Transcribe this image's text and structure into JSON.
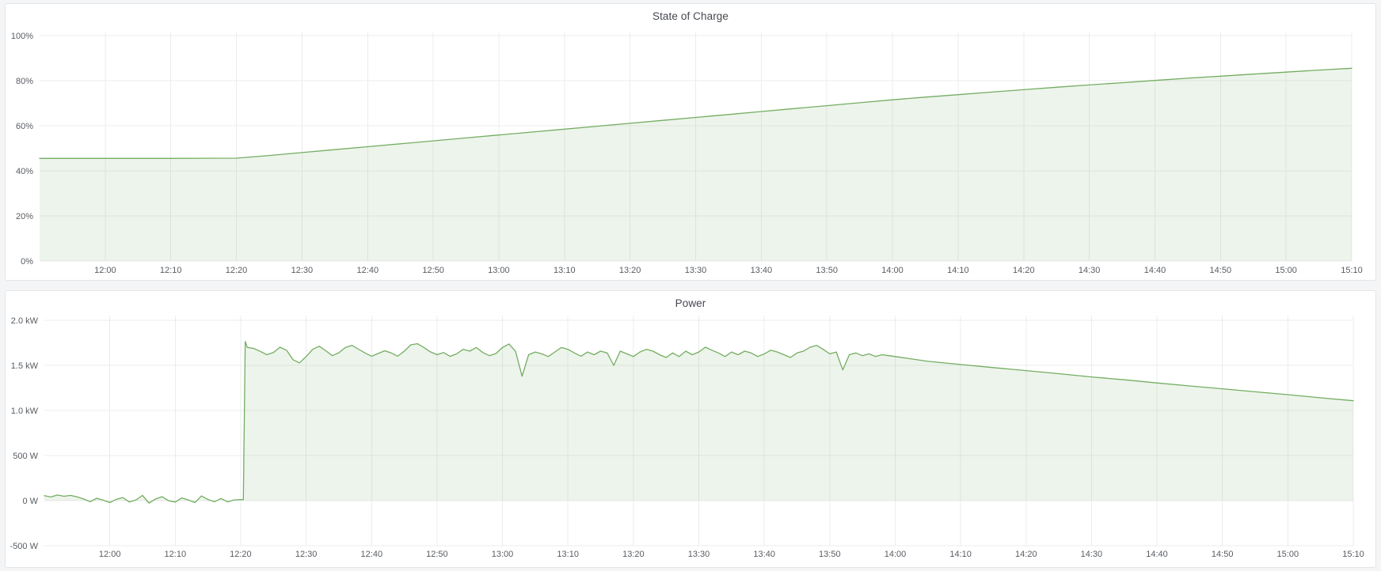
{
  "theme": {
    "page_bg": "#f4f5f6",
    "panel_bg": "#ffffff",
    "panel_border": "#e3e5e8",
    "title_color": "#44484e",
    "tick_color": "#585c62",
    "grid_color": "#ebecee",
    "series_green": "#74ad62",
    "series_green_fill": "rgba(116,173,98,0.13)"
  },
  "panels": [
    {
      "title": "State of Charge"
    },
    {
      "title": "Power"
    }
  ],
  "chart_data": [
    {
      "type": "area",
      "title": "State of Charge",
      "unit": "%",
      "x_start": "11:50",
      "x_end": "15:10",
      "ylim": [
        0,
        100
      ],
      "grid": true,
      "legend": false,
      "line_color": "#74ad62",
      "fill_color": "rgba(116,173,98,0.13)",
      "y_ticks": [
        {
          "v": 0,
          "label": "0%"
        },
        {
          "v": 20,
          "label": "20%"
        },
        {
          "v": 40,
          "label": "40%"
        },
        {
          "v": 60,
          "label": "60%"
        },
        {
          "v": 80,
          "label": "80%"
        },
        {
          "v": 100,
          "label": "100%"
        }
      ],
      "x_ticks": [
        {
          "t": 10,
          "label": "12:00"
        },
        {
          "t": 20,
          "label": "12:10"
        },
        {
          "t": 30,
          "label": "12:20"
        },
        {
          "t": 40,
          "label": "12:30"
        },
        {
          "t": 50,
          "label": "12:40"
        },
        {
          "t": 60,
          "label": "12:50"
        },
        {
          "t": 70,
          "label": "13:00"
        },
        {
          "t": 80,
          "label": "13:10"
        },
        {
          "t": 90,
          "label": "13:20"
        },
        {
          "t": 100,
          "label": "13:30"
        },
        {
          "t": 110,
          "label": "13:40"
        },
        {
          "t": 120,
          "label": "13:50"
        },
        {
          "t": 130,
          "label": "14:00"
        },
        {
          "t": 140,
          "label": "14:10"
        },
        {
          "t": 150,
          "label": "14:20"
        },
        {
          "t": 160,
          "label": "14:30"
        },
        {
          "t": 170,
          "label": "14:40"
        },
        {
          "t": 180,
          "label": "14:50"
        },
        {
          "t": 190,
          "label": "15:00"
        },
        {
          "t": 200,
          "label": "15:10"
        }
      ],
      "series": [
        {
          "name": "State of Charge",
          "points": [
            [
              0,
              45.5
            ],
            [
              10,
              45.5
            ],
            [
              20,
              45.5
            ],
            [
              30,
              45.6
            ],
            [
              35,
              46.8
            ],
            [
              40,
              48.1
            ],
            [
              45,
              49.4
            ],
            [
              50,
              50.7
            ],
            [
              55,
              52.0
            ],
            [
              60,
              53.3
            ],
            [
              65,
              54.6
            ],
            [
              70,
              55.9
            ],
            [
              75,
              57.2
            ],
            [
              80,
              58.5
            ],
            [
              85,
              59.8
            ],
            [
              90,
              61.1
            ],
            [
              95,
              62.4
            ],
            [
              100,
              63.7
            ],
            [
              105,
              65.0
            ],
            [
              110,
              66.3
            ],
            [
              115,
              67.6
            ],
            [
              120,
              68.9
            ],
            [
              125,
              70.2
            ],
            [
              130,
              71.5
            ],
            [
              135,
              72.7
            ],
            [
              140,
              73.8
            ],
            [
              145,
              74.9
            ],
            [
              150,
              76.0
            ],
            [
              155,
              77.1
            ],
            [
              160,
              78.1
            ],
            [
              165,
              79.1
            ],
            [
              170,
              80.1
            ],
            [
              175,
              81.1
            ],
            [
              180,
              82.0
            ],
            [
              185,
              82.9
            ],
            [
              190,
              83.8
            ],
            [
              195,
              84.7
            ],
            [
              200,
              85.5
            ]
          ]
        }
      ]
    },
    {
      "type": "area",
      "title": "Power",
      "unit": "W",
      "x_start": "11:50",
      "x_end": "15:10",
      "ylim": [
        -500,
        2000
      ],
      "grid": true,
      "legend": false,
      "line_color": "#74ad62",
      "fill_color": "rgba(116,173,98,0.13)",
      "y_ticks": [
        {
          "v": -500,
          "label": "-500 W"
        },
        {
          "v": 0,
          "label": "0 W"
        },
        {
          "v": 500,
          "label": "500 W"
        },
        {
          "v": 1000,
          "label": "1.0 kW"
        },
        {
          "v": 1500,
          "label": "1.5 kW"
        },
        {
          "v": 2000,
          "label": "2.0 kW"
        }
      ],
      "x_ticks": [
        {
          "t": 10,
          "label": "12:00"
        },
        {
          "t": 20,
          "label": "12:10"
        },
        {
          "t": 30,
          "label": "12:20"
        },
        {
          "t": 40,
          "label": "12:30"
        },
        {
          "t": 50,
          "label": "12:40"
        },
        {
          "t": 60,
          "label": "12:50"
        },
        {
          "t": 70,
          "label": "13:00"
        },
        {
          "t": 80,
          "label": "13:10"
        },
        {
          "t": 90,
          "label": "13:20"
        },
        {
          "t": 100,
          "label": "13:30"
        },
        {
          "t": 110,
          "label": "13:40"
        },
        {
          "t": 120,
          "label": "13:50"
        },
        {
          "t": 130,
          "label": "14:00"
        },
        {
          "t": 140,
          "label": "14:10"
        },
        {
          "t": 150,
          "label": "14:20"
        },
        {
          "t": 160,
          "label": "14:30"
        },
        {
          "t": 170,
          "label": "14:40"
        },
        {
          "t": 180,
          "label": "14:50"
        },
        {
          "t": 190,
          "label": "15:00"
        },
        {
          "t": 200,
          "label": "15:10"
        }
      ],
      "series": [
        {
          "name": "Power",
          "points": [
            [
              0,
              55
            ],
            [
              1,
              40
            ],
            [
              2,
              62
            ],
            [
              3,
              48
            ],
            [
              4,
              58
            ],
            [
              5,
              42
            ],
            [
              6,
              18
            ],
            [
              7,
              -12
            ],
            [
              8,
              26
            ],
            [
              9,
              4
            ],
            [
              10,
              -22
            ],
            [
              11,
              14
            ],
            [
              12,
              34
            ],
            [
              13,
              -16
            ],
            [
              14,
              8
            ],
            [
              15,
              58
            ],
            [
              16,
              -28
            ],
            [
              17,
              18
            ],
            [
              18,
              44
            ],
            [
              19,
              -2
            ],
            [
              20,
              -16
            ],
            [
              21,
              30
            ],
            [
              22,
              8
            ],
            [
              23,
              -22
            ],
            [
              24,
              52
            ],
            [
              25,
              12
            ],
            [
              26,
              -12
            ],
            [
              27,
              24
            ],
            [
              28,
              -14
            ],
            [
              29,
              8
            ],
            [
              30,
              12
            ],
            [
              30.4,
              10
            ],
            [
              30.7,
              1765
            ],
            [
              31,
              1700
            ],
            [
              32,
              1688
            ],
            [
              33,
              1655
            ],
            [
              34,
              1618
            ],
            [
              35,
              1642
            ],
            [
              36,
              1702
            ],
            [
              37,
              1668
            ],
            [
              38,
              1562
            ],
            [
              39,
              1528
            ],
            [
              40,
              1598
            ],
            [
              41,
              1678
            ],
            [
              42,
              1712
            ],
            [
              43,
              1662
            ],
            [
              44,
              1608
            ],
            [
              45,
              1640
            ],
            [
              46,
              1698
            ],
            [
              47,
              1722
            ],
            [
              48,
              1680
            ],
            [
              49,
              1638
            ],
            [
              50,
              1602
            ],
            [
              51,
              1632
            ],
            [
              52,
              1662
            ],
            [
              53,
              1638
            ],
            [
              54,
              1602
            ],
            [
              55,
              1658
            ],
            [
              56,
              1728
            ],
            [
              57,
              1740
            ],
            [
              58,
              1698
            ],
            [
              59,
              1650
            ],
            [
              60,
              1618
            ],
            [
              61,
              1642
            ],
            [
              62,
              1600
            ],
            [
              63,
              1628
            ],
            [
              64,
              1678
            ],
            [
              65,
              1658
            ],
            [
              66,
              1698
            ],
            [
              67,
              1642
            ],
            [
              68,
              1608
            ],
            [
              69,
              1632
            ],
            [
              70,
              1698
            ],
            [
              71,
              1738
            ],
            [
              72,
              1655
            ],
            [
              73,
              1380
            ],
            [
              74,
              1618
            ],
            [
              75,
              1648
            ],
            [
              76,
              1628
            ],
            [
              77,
              1598
            ],
            [
              78,
              1648
            ],
            [
              79,
              1698
            ],
            [
              80,
              1678
            ],
            [
              81,
              1638
            ],
            [
              82,
              1602
            ],
            [
              83,
              1648
            ],
            [
              84,
              1618
            ],
            [
              85,
              1658
            ],
            [
              86,
              1638
            ],
            [
              87,
              1500
            ],
            [
              88,
              1658
            ],
            [
              89,
              1628
            ],
            [
              90,
              1598
            ],
            [
              91,
              1648
            ],
            [
              92,
              1678
            ],
            [
              93,
              1658
            ],
            [
              94,
              1618
            ],
            [
              95,
              1588
            ],
            [
              96,
              1638
            ],
            [
              97,
              1598
            ],
            [
              98,
              1658
            ],
            [
              99,
              1618
            ],
            [
              100,
              1648
            ],
            [
              101,
              1702
            ],
            [
              102,
              1668
            ],
            [
              103,
              1638
            ],
            [
              104,
              1598
            ],
            [
              105,
              1648
            ],
            [
              106,
              1618
            ],
            [
              107,
              1658
            ],
            [
              108,
              1638
            ],
            [
              109,
              1598
            ],
            [
              110,
              1628
            ],
            [
              111,
              1668
            ],
            [
              112,
              1648
            ],
            [
              113,
              1618
            ],
            [
              114,
              1588
            ],
            [
              115,
              1638
            ],
            [
              116,
              1658
            ],
            [
              117,
              1702
            ],
            [
              118,
              1722
            ],
            [
              119,
              1678
            ],
            [
              120,
              1628
            ],
            [
              121,
              1648
            ],
            [
              122,
              1450
            ],
            [
              123,
              1618
            ],
            [
              124,
              1638
            ],
            [
              125,
              1608
            ],
            [
              126,
              1628
            ],
            [
              127,
              1598
            ],
            [
              128,
              1618
            ],
            [
              129,
              1608
            ],
            [
              130,
              1598
            ],
            [
              135,
              1545
            ],
            [
              140,
              1510
            ],
            [
              145,
              1475
            ],
            [
              150,
              1442
            ],
            [
              155,
              1408
            ],
            [
              160,
              1372
            ],
            [
              165,
              1340
            ],
            [
              170,
              1305
            ],
            [
              175,
              1272
            ],
            [
              180,
              1240
            ],
            [
              185,
              1207
            ],
            [
              190,
              1175
            ],
            [
              195,
              1140
            ],
            [
              200,
              1108
            ]
          ]
        }
      ]
    }
  ]
}
